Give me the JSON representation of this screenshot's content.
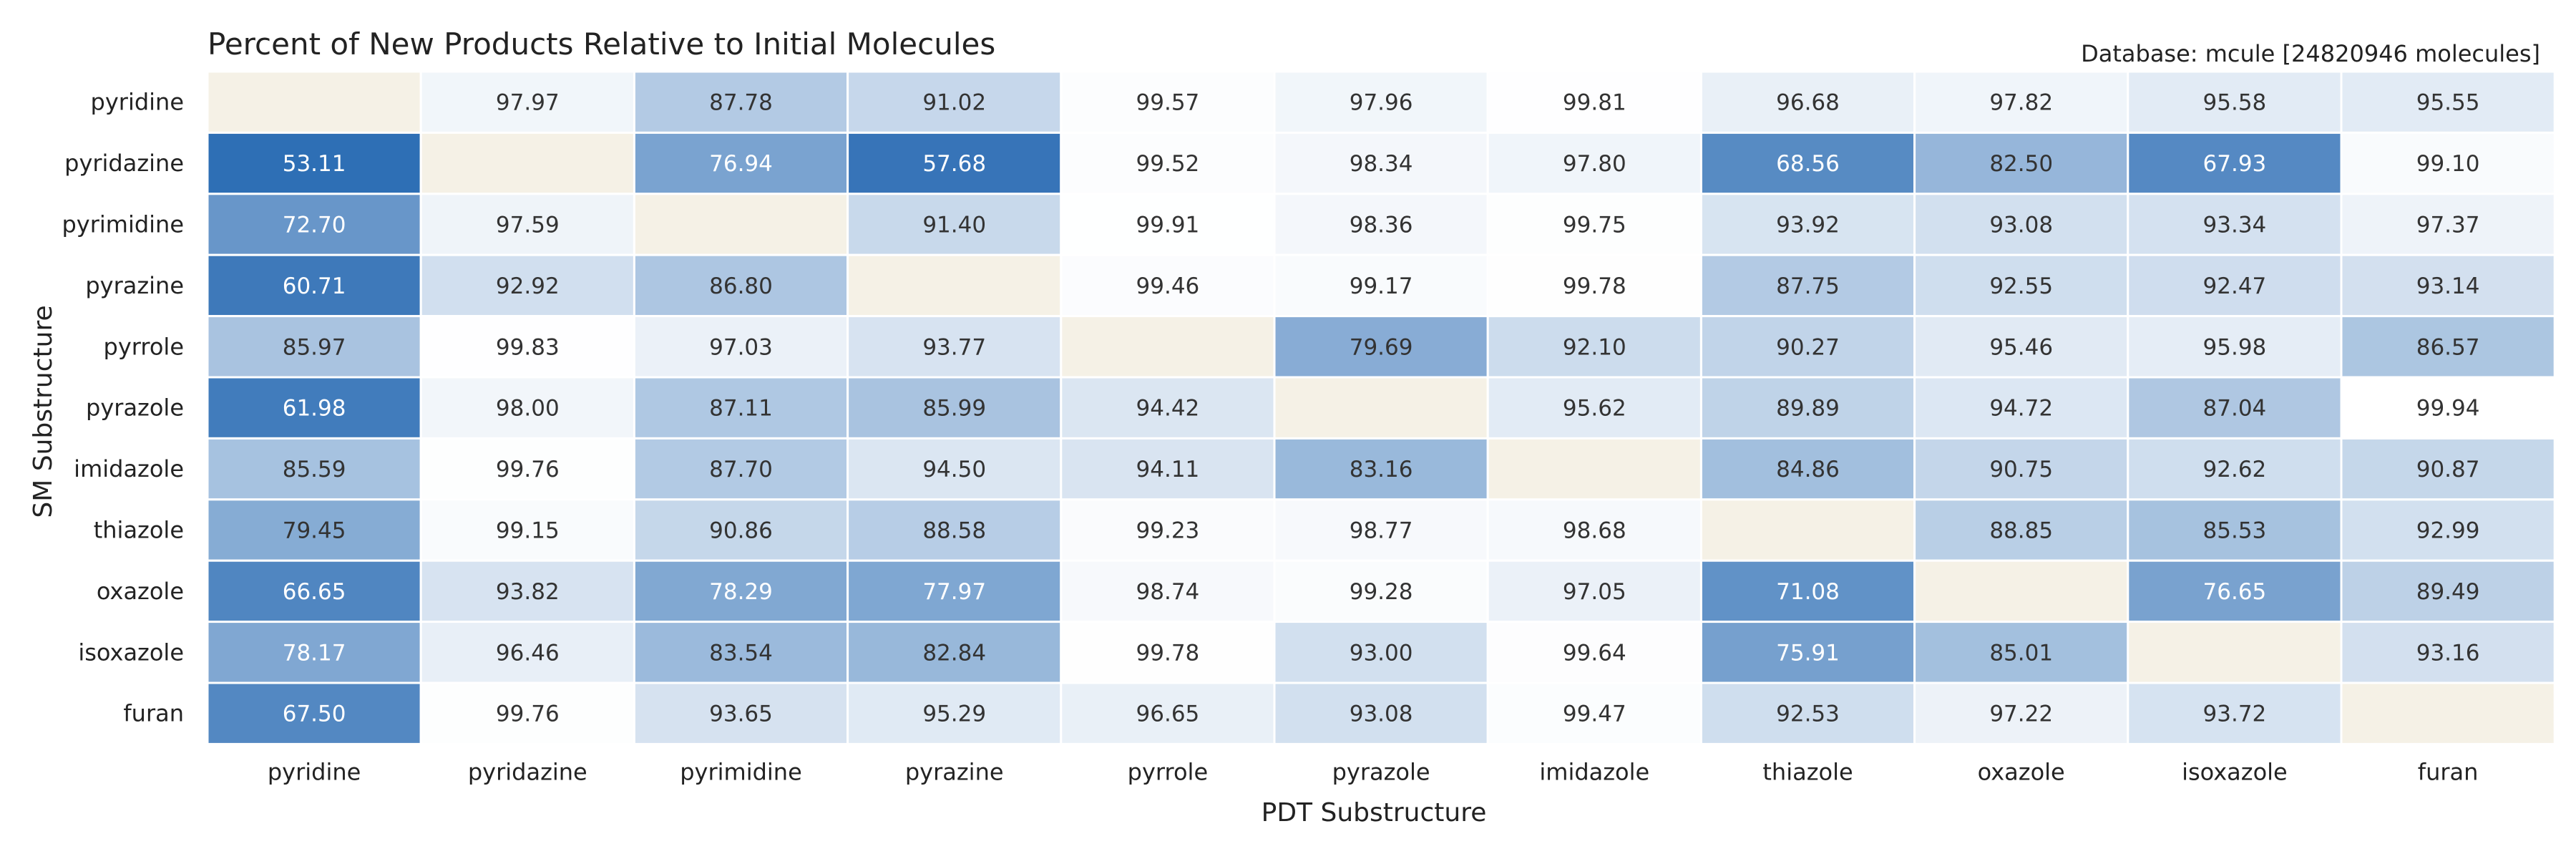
{
  "chart_data": {
    "type": "heatmap",
    "title": "Percent of New Products Relative to Initial Molecules",
    "subtitle": "Database: mcule [24820946 molecules]",
    "xlabel": "PDT Substructure",
    "ylabel": "SM Substructure",
    "x_categories": [
      "pyridine",
      "pyridazine",
      "pyrimidine",
      "pyrazine",
      "pyrrole",
      "pyrazole",
      "imidazole",
      "thiazole",
      "oxazole",
      "isoxazole",
      "furan"
    ],
    "y_categories": [
      "pyridine",
      "pyridazine",
      "pyrimidine",
      "pyrazine",
      "pyrrole",
      "pyrazole",
      "imidazole",
      "thiazole",
      "oxazole",
      "isoxazole",
      "furan"
    ],
    "values": [
      [
        null,
        97.97,
        87.78,
        91.02,
        99.57,
        97.96,
        99.81,
        96.68,
        97.82,
        95.58,
        95.55
      ],
      [
        53.11,
        null,
        76.94,
        57.68,
        99.52,
        98.34,
        97.8,
        68.56,
        82.5,
        67.93,
        99.1
      ],
      [
        72.7,
        97.59,
        null,
        91.4,
        99.91,
        98.36,
        99.75,
        93.92,
        93.08,
        93.34,
        97.37
      ],
      [
        60.71,
        92.92,
        86.8,
        null,
        99.46,
        99.17,
        99.78,
        87.75,
        92.55,
        92.47,
        93.14
      ],
      [
        85.97,
        99.83,
        97.03,
        93.77,
        null,
        79.69,
        92.1,
        90.27,
        95.46,
        95.98,
        86.57
      ],
      [
        61.98,
        98.0,
        87.11,
        85.99,
        94.42,
        null,
        95.62,
        89.89,
        94.72,
        87.04,
        99.94
      ],
      [
        85.59,
        99.76,
        87.7,
        94.5,
        94.11,
        83.16,
        null,
        84.86,
        90.75,
        92.62,
        90.87
      ],
      [
        79.45,
        99.15,
        90.86,
        88.58,
        99.23,
        98.77,
        98.68,
        null,
        88.85,
        85.53,
        92.99
      ],
      [
        66.65,
        93.82,
        78.29,
        77.97,
        98.74,
        99.28,
        97.05,
        71.08,
        null,
        76.65,
        89.49
      ],
      [
        78.17,
        96.46,
        83.54,
        82.84,
        99.78,
        93.0,
        99.64,
        75.91,
        85.01,
        null,
        93.16
      ],
      [
        67.5,
        99.76,
        93.65,
        95.29,
        96.65,
        93.08,
        99.47,
        92.53,
        97.22,
        93.72,
        null
      ]
    ],
    "colormap": {
      "low_color": "#2c6db4",
      "high_color": "#ffffff",
      "vmin": 50,
      "vmax": 100,
      "missing_color": "#f5f1e6"
    },
    "value_format": "2 decimals",
    "legend": "none"
  }
}
